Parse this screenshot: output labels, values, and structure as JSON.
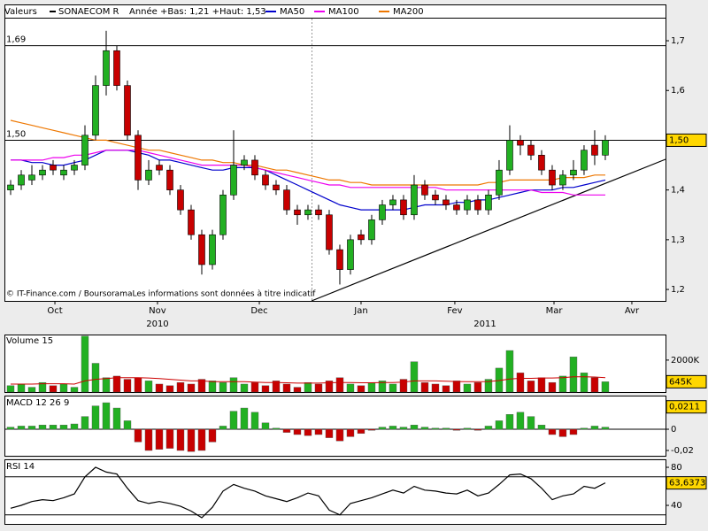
{
  "chart_data": [
    {
      "type": "candlestick",
      "legend_label": "Valeurs",
      "title": "SONAECOM R",
      "subtitle": "Année +Bas: 1,21 +Haut: 1,53",
      "source": "© IT-Finance.com / BoursoramaLes informations sont données à titre indicatif",
      "x": [
        0,
        1,
        2,
        3,
        4,
        5,
        6,
        7,
        8,
        9,
        10,
        11,
        12,
        13,
        14,
        15,
        16,
        17,
        18,
        19,
        20,
        21,
        22,
        23,
        24,
        25,
        26,
        27,
        28,
        29,
        30,
        31,
        32,
        33,
        34,
        35,
        36,
        37,
        38,
        39,
        40,
        41,
        42,
        43,
        44,
        45,
        46,
        47,
        48,
        49,
        50,
        51,
        52,
        53,
        54,
        55,
        56
      ],
      "open": [
        1.4,
        1.41,
        1.42,
        1.43,
        1.45,
        1.43,
        1.44,
        1.45,
        1.51,
        1.61,
        1.68,
        1.61,
        1.51,
        1.42,
        1.45,
        1.44,
        1.4,
        1.36,
        1.31,
        1.25,
        1.31,
        1.39,
        1.45,
        1.46,
        1.43,
        1.41,
        1.4,
        1.36,
        1.35,
        1.36,
        1.35,
        1.28,
        1.24,
        1.31,
        1.3,
        1.34,
        1.37,
        1.38,
        1.35,
        1.41,
        1.39,
        1.38,
        1.37,
        1.36,
        1.38,
        1.36,
        1.39,
        1.44,
        1.5,
        1.49,
        1.47,
        1.44,
        1.41,
        1.43,
        1.44,
        1.49,
        1.47
      ],
      "high": [
        1.42,
        1.44,
        1.45,
        1.45,
        1.46,
        1.45,
        1.46,
        1.53,
        1.63,
        1.72,
        1.69,
        1.62,
        1.52,
        1.46,
        1.46,
        1.45,
        1.41,
        1.37,
        1.32,
        1.32,
        1.4,
        1.52,
        1.47,
        1.47,
        1.44,
        1.42,
        1.41,
        1.37,
        1.37,
        1.37,
        1.36,
        1.29,
        1.31,
        1.32,
        1.35,
        1.38,
        1.39,
        1.39,
        1.43,
        1.42,
        1.4,
        1.39,
        1.38,
        1.39,
        1.39,
        1.4,
        1.46,
        1.53,
        1.51,
        1.5,
        1.48,
        1.45,
        1.44,
        1.46,
        1.49,
        1.52,
        1.51
      ],
      "low": [
        1.39,
        1.4,
        1.41,
        1.42,
        1.43,
        1.42,
        1.43,
        1.44,
        1.5,
        1.59,
        1.6,
        1.5,
        1.4,
        1.41,
        1.43,
        1.39,
        1.35,
        1.3,
        1.23,
        1.24,
        1.3,
        1.38,
        1.44,
        1.42,
        1.4,
        1.39,
        1.35,
        1.33,
        1.34,
        1.34,
        1.27,
        1.21,
        1.23,
        1.29,
        1.29,
        1.33,
        1.36,
        1.34,
        1.34,
        1.38,
        1.37,
        1.36,
        1.35,
        1.35,
        1.35,
        1.35,
        1.38,
        1.43,
        1.47,
        1.46,
        1.43,
        1.4,
        1.4,
        1.42,
        1.43,
        1.45,
        1.46
      ],
      "close": [
        1.41,
        1.43,
        1.43,
        1.44,
        1.44,
        1.44,
        1.45,
        1.51,
        1.61,
        1.68,
        1.61,
        1.51,
        1.42,
        1.44,
        1.44,
        1.4,
        1.36,
        1.31,
        1.25,
        1.31,
        1.39,
        1.45,
        1.46,
        1.43,
        1.41,
        1.4,
        1.36,
        1.35,
        1.36,
        1.35,
        1.28,
        1.24,
        1.3,
        1.3,
        1.34,
        1.37,
        1.38,
        1.35,
        1.41,
        1.39,
        1.38,
        1.37,
        1.36,
        1.38,
        1.36,
        1.39,
        1.44,
        1.5,
        1.49,
        1.47,
        1.44,
        1.41,
        1.43,
        1.44,
        1.48,
        1.47,
        1.5
      ],
      "up_color": "#22b022",
      "down_color": "#c80000",
      "color": "#000000",
      "series": [
        {
          "name": "MA50",
          "color": "#0000cc",
          "values": [
            1.46,
            1.46,
            1.455,
            1.455,
            1.45,
            1.45,
            1.455,
            1.46,
            1.47,
            1.48,
            1.48,
            1.48,
            1.475,
            1.47,
            1.46,
            1.46,
            1.455,
            1.45,
            1.445,
            1.44,
            1.44,
            1.445,
            1.445,
            1.445,
            1.44,
            1.43,
            1.42,
            1.41,
            1.4,
            1.39,
            1.38,
            1.37,
            1.365,
            1.36,
            1.36,
            1.36,
            1.36,
            1.36,
            1.365,
            1.37,
            1.37,
            1.37,
            1.375,
            1.375,
            1.38,
            1.38,
            1.385,
            1.39,
            1.395,
            1.4,
            1.4,
            1.4,
            1.405,
            1.405,
            1.41,
            1.415,
            1.42
          ]
        },
        {
          "name": "MA100",
          "color": "#ee00ee",
          "values": [
            1.46,
            1.46,
            1.46,
            1.46,
            1.465,
            1.465,
            1.47,
            1.47,
            1.475,
            1.48,
            1.48,
            1.48,
            1.48,
            1.475,
            1.47,
            1.465,
            1.46,
            1.455,
            1.45,
            1.45,
            1.45,
            1.45,
            1.45,
            1.445,
            1.44,
            1.435,
            1.43,
            1.425,
            1.42,
            1.415,
            1.41,
            1.41,
            1.405,
            1.405,
            1.405,
            1.405,
            1.405,
            1.405,
            1.405,
            1.405,
            1.405,
            1.4,
            1.4,
            1.4,
            1.4,
            1.4,
            1.4,
            1.4,
            1.4,
            1.4,
            1.395,
            1.395,
            1.395,
            1.39,
            1.39,
            1.39,
            1.39
          ]
        },
        {
          "name": "MA200",
          "color": "#ee7700",
          "values": [
            1.54,
            1.535,
            1.53,
            1.525,
            1.52,
            1.515,
            1.51,
            1.505,
            1.5,
            1.5,
            1.495,
            1.49,
            1.485,
            1.48,
            1.48,
            1.475,
            1.47,
            1.465,
            1.46,
            1.46,
            1.455,
            1.455,
            1.45,
            1.45,
            1.445,
            1.44,
            1.44,
            1.435,
            1.43,
            1.425,
            1.42,
            1.42,
            1.415,
            1.415,
            1.41,
            1.41,
            1.41,
            1.41,
            1.41,
            1.41,
            1.41,
            1.41,
            1.41,
            1.41,
            1.41,
            1.415,
            1.415,
            1.42,
            1.42,
            1.42,
            1.42,
            1.42,
            1.425,
            1.425,
            1.425,
            1.43,
            1.43
          ]
        }
      ],
      "xlim": [
        -0.583,
        61.67
      ],
      "xticks": [
        {
          "value": 4.17,
          "label": "Oct"
        },
        {
          "value": 13.83,
          "label": "Nov"
        },
        {
          "value": 23.42,
          "label": "Dec"
        },
        {
          "value": 33,
          "label": "Jan"
        },
        {
          "value": 41.83,
          "label": "Fev"
        },
        {
          "value": 51.17,
          "label": "Mar"
        },
        {
          "value": 58.5,
          "label": "Avr"
        }
      ],
      "year_labels": [
        {
          "value": 13.83,
          "label": "2010"
        },
        {
          "value": 44.67,
          "label": "2011"
        }
      ],
      "ylim": [
        1.177,
        1.773
      ],
      "yticks": [
        {
          "value": 1.2,
          "label": "1,2"
        },
        {
          "value": 1.3,
          "label": "1,3"
        },
        {
          "value": 1.4,
          "label": "1,4"
        },
        {
          "value": 1.5,
          "label": "1,5"
        },
        {
          "value": 1.6,
          "label": "1,6"
        },
        {
          "value": 1.7,
          "label": "1,7"
        }
      ],
      "levels": [
        {
          "value": 1.69,
          "label": "1,69"
        },
        {
          "value": 1.5,
          "label": "1,50"
        }
      ],
      "last": {
        "value": 1.5,
        "label": "1,50"
      }
    },
    {
      "type": "bar",
      "title": "Volume 15",
      "values": [
        400,
        500,
        300,
        600,
        400,
        500,
        300,
        3500,
        1800,
        900,
        1000,
        800,
        900,
        700,
        500,
        400,
        600,
        500,
        800,
        700,
        600,
        900,
        500,
        600,
        400,
        700,
        500,
        300,
        600,
        500,
        700,
        900,
        500,
        400,
        600,
        700,
        500,
        800,
        1900,
        600,
        500,
        400,
        700,
        500,
        600,
        800,
        1500,
        2600,
        1200,
        700,
        900,
        600,
        1000,
        2200,
        1200,
        900,
        645
      ],
      "ma_values": [
        500,
        500,
        500,
        520,
        520,
        520,
        500,
        700,
        800,
        850,
        900,
        900,
        900,
        880,
        850,
        800,
        750,
        700,
        700,
        650,
        650,
        650,
        650,
        620,
        600,
        600,
        580,
        560,
        560,
        560,
        580,
        600,
        600,
        580,
        580,
        600,
        600,
        620,
        700,
        700,
        700,
        680,
        660,
        650,
        650,
        660,
        720,
        820,
        860,
        860,
        880,
        880,
        900,
        950,
        960,
        940,
        900
      ],
      "ma_color": "#cc0000",
      "ylim": [
        0,
        3600
      ],
      "yticks": [
        {
          "value": 2000,
          "label": "2000K"
        }
      ],
      "last": {
        "value": 645,
        "label": "645K"
      }
    },
    {
      "type": "bar",
      "title": "MACD 12 26 9",
      "values": [
        0.002,
        0.003,
        0.003,
        0.004,
        0.004,
        0.004,
        0.005,
        0.012,
        0.022,
        0.025,
        0.02,
        0.008,
        -0.012,
        -0.02,
        -0.019,
        -0.018,
        -0.02,
        -0.021,
        -0.02,
        -0.012,
        0.003,
        0.017,
        0.02,
        0.016,
        0.006,
        0.001,
        -0.003,
        -0.005,
        -0.006,
        -0.005,
        -0.008,
        -0.011,
        -0.007,
        -0.004,
        -0.001,
        0.002,
        0.003,
        0.002,
        0.004,
        0.002,
        0.001,
        0.001,
        -0.001,
        0.001,
        -0.001,
        0.003,
        0.008,
        0.014,
        0.016,
        0.012,
        0.004,
        -0.005,
        -0.007,
        -0.005,
        0.001,
        0.003,
        0.002
      ],
      "pos_color": "#22b022",
      "neg_color": "#c80000",
      "ylim": [
        -0.025,
        0.0317
      ],
      "yticks": [
        0,
        {
          "value": -0.02,
          "label": "-0,02"
        }
      ],
      "last": {
        "value": 0.0211,
        "label": "0,0211"
      }
    },
    {
      "type": "line",
      "title": "RSI 14",
      "color": "#000000",
      "values": [
        37,
        40,
        44,
        46,
        45,
        48,
        52,
        70,
        80,
        75,
        73,
        58,
        45,
        42,
        44,
        42,
        39,
        34,
        27,
        38,
        55,
        62,
        58,
        55,
        50,
        47,
        44,
        48,
        53,
        50,
        35,
        30,
        42,
        45,
        48,
        52,
        56,
        53,
        60,
        56,
        55,
        53,
        52,
        56,
        50,
        53,
        62,
        72,
        73,
        68,
        58,
        46,
        50,
        52,
        60,
        58,
        63.6373
      ],
      "ylim": [
        20.5,
        88.4
      ],
      "yticks": [
        80,
        40
      ],
      "levels": [
        70,
        30
      ],
      "last": {
        "value": 63.6373,
        "label": "63,6373"
      }
    }
  ]
}
